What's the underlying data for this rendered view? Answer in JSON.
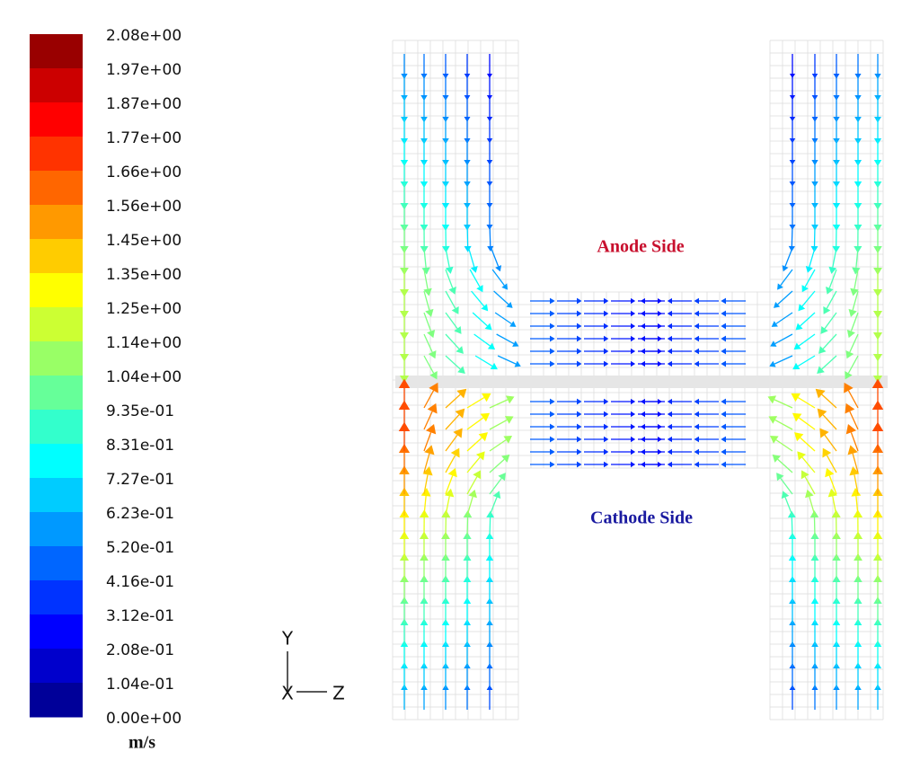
{
  "colorbar": {
    "labels": [
      "2.08e+00",
      "1.97e+00",
      "1.87e+00",
      "1.77e+00",
      "1.66e+00",
      "1.56e+00",
      "1.45e+00",
      "1.35e+00",
      "1.25e+00",
      "1.14e+00",
      "1.04e+00",
      "9.35e-01",
      "8.31e-01",
      "7.27e-01",
      "6.23e-01",
      "5.20e-01",
      "4.16e-01",
      "3.12e-01",
      "2.08e-01",
      "1.04e-01",
      "0.00e+00"
    ],
    "unit": "m/s"
  },
  "axes": {
    "y": "Y",
    "x": "X",
    "z": "Z"
  },
  "annotations": {
    "anode": "Anode Side",
    "cathode": "Cathode Side"
  }
}
